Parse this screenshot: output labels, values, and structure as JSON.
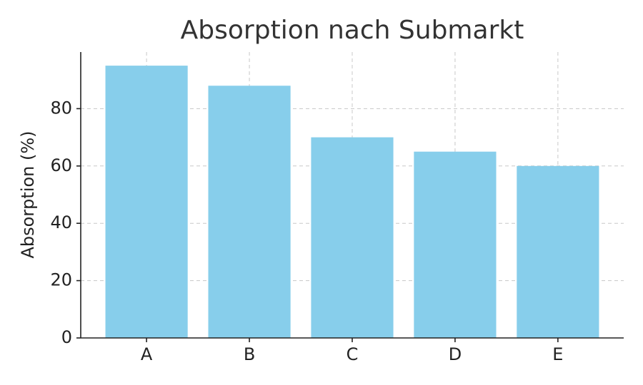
{
  "chart_data": {
    "type": "bar",
    "title": "Absorption nach Submarkt",
    "ylabel": "Absorption (%)",
    "categories": [
      "A",
      "B",
      "C",
      "D",
      "E"
    ],
    "values": [
      95,
      88,
      70,
      65,
      60
    ],
    "color": "#87ceeb",
    "ylim": [
      0,
      99.75
    ],
    "yticks": [
      0,
      20,
      40,
      60,
      80
    ],
    "grid": true
  }
}
